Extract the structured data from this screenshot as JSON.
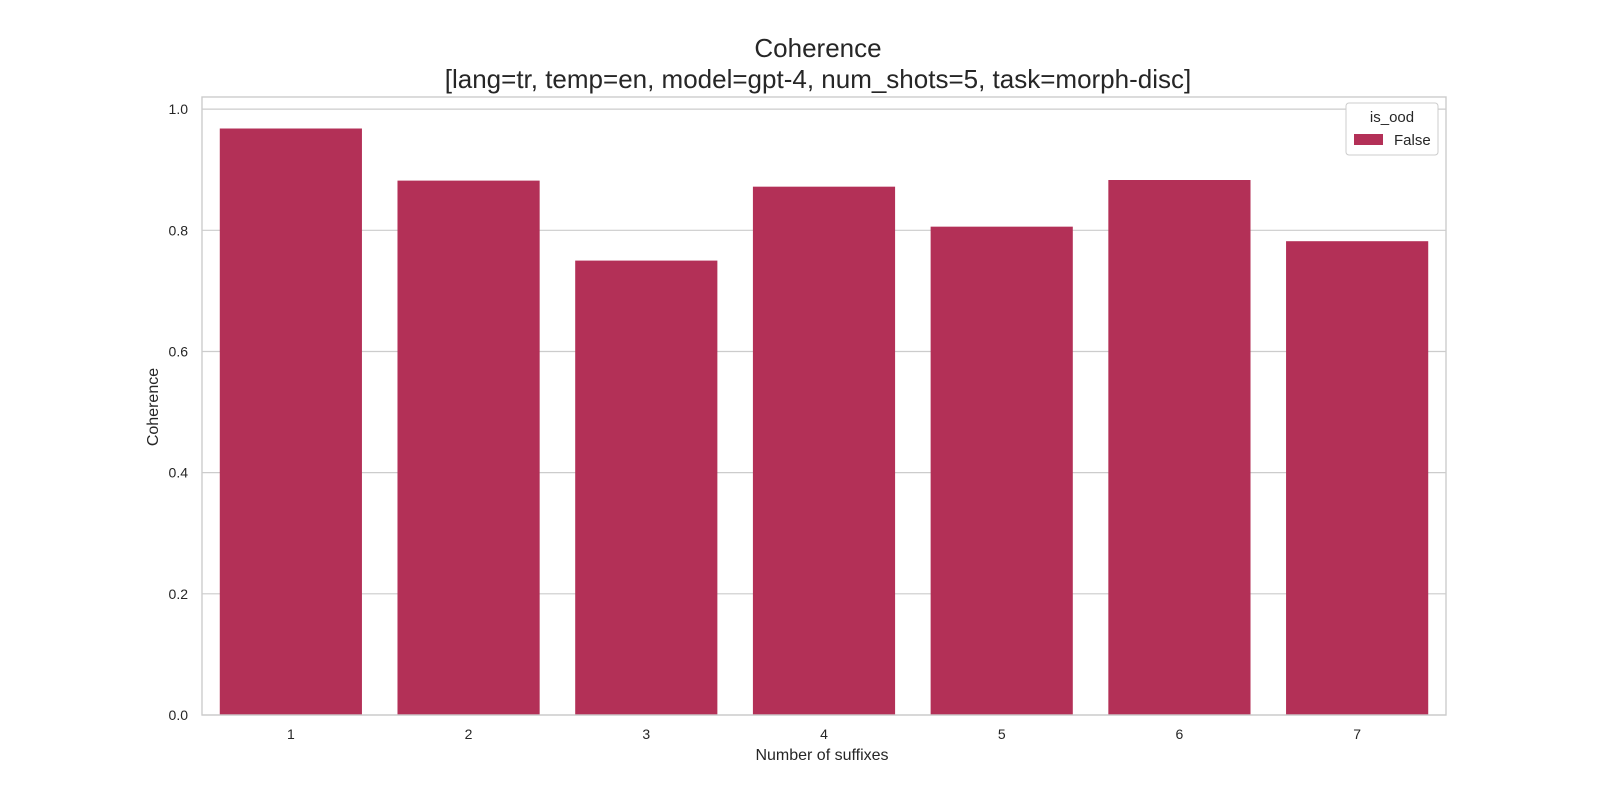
{
  "chart_data": {
    "type": "bar",
    "title": "Coherence",
    "subtitle": "[lang=tr, temp=en, model=gpt-4, num_shots=5, task=morph-disc]",
    "xlabel": "Number of suffixes",
    "ylabel": "Coherence",
    "categories": [
      "1",
      "2",
      "3",
      "4",
      "5",
      "6",
      "7"
    ],
    "series": [
      {
        "name": "False",
        "values": [
          0.968,
          0.882,
          0.75,
          0.872,
          0.806,
          0.883,
          0.782
        ],
        "color": "#b33057"
      }
    ],
    "ylim": [
      0,
      1.02
    ],
    "yticks": [
      0.0,
      0.2,
      0.4,
      0.6,
      0.8,
      1.0
    ],
    "ytick_labels": [
      "0.0",
      "0.2",
      "0.4",
      "0.6",
      "0.8",
      "1.0"
    ],
    "grid": true,
    "legend": {
      "title": "is_ood",
      "placement": "top-right"
    }
  }
}
